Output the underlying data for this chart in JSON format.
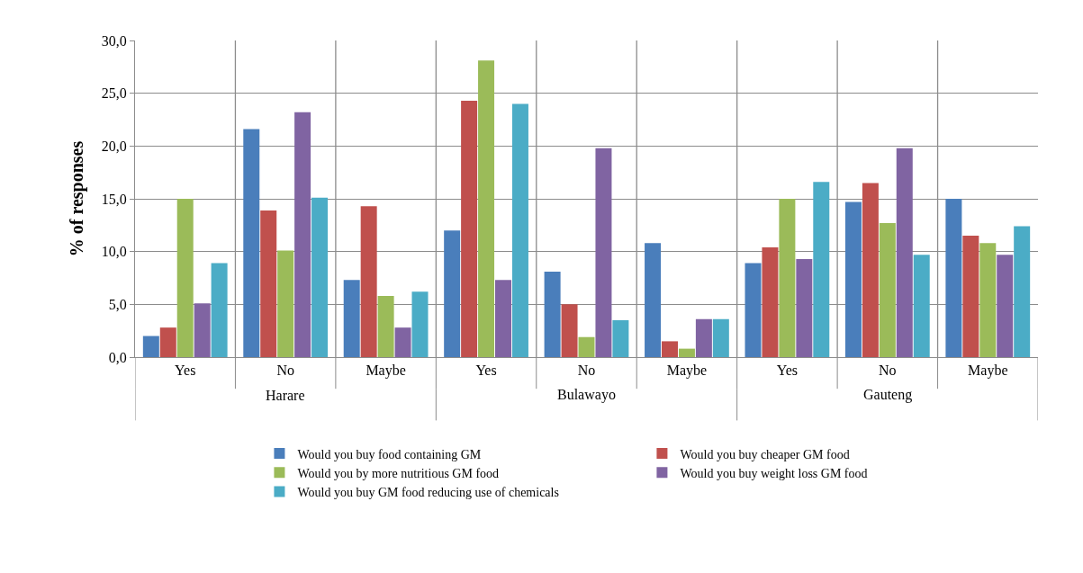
{
  "chart_data": {
    "type": "bar",
    "ylabel": "% of responses",
    "categories": [
      "Yes",
      "No",
      "Maybe",
      "Yes",
      "No",
      "Maybe",
      "Yes",
      "No",
      "Maybe"
    ],
    "annotations": [
      "Harare",
      "Bulawayo",
      "Gauteng"
    ],
    "series": [
      {
        "name": "Would you buy food containing GM",
        "color": "#4a7ebb",
        "values": [
          2.0,
          21.6,
          7.3,
          12.0,
          8.1,
          10.8,
          8.9,
          14.7,
          15.0
        ]
      },
      {
        "name": "Would you buy cheaper GM food",
        "color": "#c0504d",
        "values": [
          2.8,
          13.9,
          14.3,
          24.3,
          5.0,
          1.5,
          10.4,
          16.5,
          11.5
        ]
      },
      {
        "name": "Would you by more nutritious GM food",
        "color": "#9bbb59",
        "values": [
          15.0,
          10.1,
          5.8,
          28.1,
          1.9,
          0.8,
          15.0,
          12.7,
          10.8
        ]
      },
      {
        "name": "Would you buy weight loss GM food",
        "color": "#8064a2",
        "values": [
          5.1,
          23.2,
          2.8,
          7.3,
          19.8,
          3.6,
          9.3,
          19.8,
          9.7
        ]
      },
      {
        "name": "Would you buy GM food reducing use of chemicals",
        "color": "#4bacc6",
        "values": [
          8.9,
          15.1,
          6.2,
          24.0,
          3.5,
          3.6,
          16.6,
          9.7,
          12.4
        ]
      }
    ],
    "ylim": [
      0,
      30
    ],
    "yticks": [
      {
        "value": 0,
        "label": "0,0"
      },
      {
        "value": 5,
        "label": "5,0"
      },
      {
        "value": 10,
        "label": "10,0"
      },
      {
        "value": 15,
        "label": "15,0"
      },
      {
        "value": 20,
        "label": "20,0"
      },
      {
        "value": 25,
        "label": "25,0"
      },
      {
        "value": 30,
        "label": "30,0"
      }
    ],
    "grid": true,
    "legend": "bottom"
  }
}
